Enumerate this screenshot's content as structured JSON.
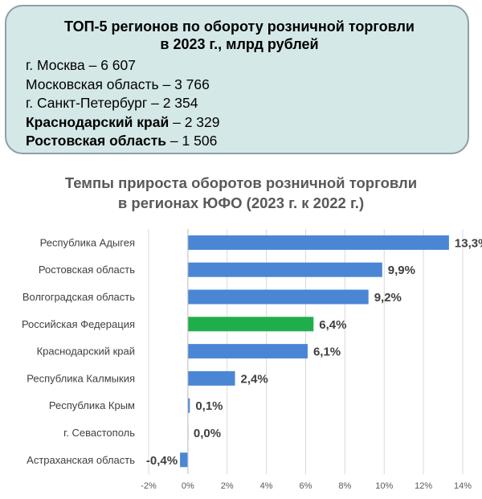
{
  "info_box": {
    "title_line1": "ТОП-5 регионов по обороту розничной торговли",
    "title_line2": "в 2023 г., млрд рублей",
    "items": [
      {
        "name": "г. Москва",
        "sep": " – ",
        "value": "6 607",
        "bold": false
      },
      {
        "name": "Московская область",
        "sep": " – ",
        "value": "3 766",
        "bold": false
      },
      {
        "name": "г. Санкт-Петербург",
        "sep": " – ",
        "value": "2 354",
        "bold": false
      },
      {
        "name": "Краснодарский край",
        "sep": " – ",
        "value": "2 329",
        "bold": true
      },
      {
        "name": "Ростовская область",
        "sep": " – ",
        "value": "1 506",
        "bold": true
      }
    ]
  },
  "chart_data": {
    "type": "bar",
    "orientation": "horizontal",
    "title_line1": "Темпы прироста оборотов розничной торговли",
    "title_line2": "в регионах ЮФО (2023 г. к 2022 г.)",
    "categories": [
      "Республика Адыгея",
      "Ростовская область",
      "Волгоградская область",
      "Российская Федерация",
      "Краснодарский край",
      "Республика Калмыкия",
      "Республика Крым",
      "г. Севастополь",
      "Астраханская область"
    ],
    "values": [
      13.3,
      9.9,
      9.2,
      6.4,
      6.1,
      2.4,
      0.1,
      0.0,
      -0.4
    ],
    "value_labels": [
      "13,3%",
      "9,9%",
      "9,2%",
      "6,4%",
      "6,1%",
      "2,4%",
      "0,1%",
      "0,0%",
      "-0,4%"
    ],
    "bar_colors": [
      "#4a86d4",
      "#4a86d4",
      "#4a86d4",
      "#1fae4b",
      "#4a86d4",
      "#4a86d4",
      "#4a86d4",
      "#4a86d4",
      "#4a86d4"
    ],
    "xlim": [
      -2,
      14
    ],
    "xticks": [
      -2,
      0,
      2,
      4,
      6,
      8,
      10,
      12,
      14
    ],
    "xtick_labels": [
      "-2%",
      "0%",
      "2%",
      "4%",
      "6%",
      "8%",
      "10%",
      "12%",
      "14%"
    ],
    "grid": true,
    "legend": "none"
  },
  "colors": {
    "box_fill": "#d4e8e7",
    "box_border": "#8e9ea6",
    "bar_main": "#4a86d4",
    "bar_highlight": "#1fae4b",
    "grid": "#d9d9d9",
    "title_gray": "#595959"
  }
}
